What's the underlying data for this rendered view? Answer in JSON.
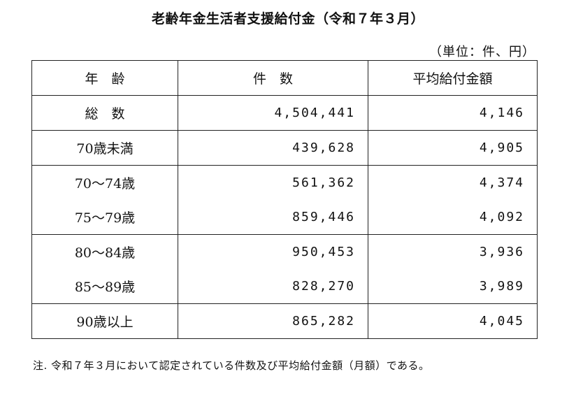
{
  "title": "老齢年金生活者支援給付金（令和７年３月）",
  "unit": "（単位：件、円）",
  "table": {
    "headers": [
      "年　齢",
      "件　数",
      "平均給付金額"
    ],
    "rows": [
      {
        "age": "総　数",
        "count": "4,504,441",
        "avg": "4,146"
      },
      {
        "age": "70歳未満",
        "count": "439,628",
        "avg": "4,905"
      },
      {
        "age": "70～74歳",
        "count": "561,362",
        "avg": "4,374"
      },
      {
        "age": "75～79歳",
        "count": "859,446",
        "avg": "4,092"
      },
      {
        "age": "80～84歳",
        "count": "950,453",
        "avg": "3,936"
      },
      {
        "age": "85～89歳",
        "count": "828,270",
        "avg": "3,989"
      },
      {
        "age": "90歳以上",
        "count": "865,282",
        "avg": "4,045"
      }
    ]
  },
  "note": "注.  令和７年３月において認定されている件数及び平均給付金額（月額）である。"
}
